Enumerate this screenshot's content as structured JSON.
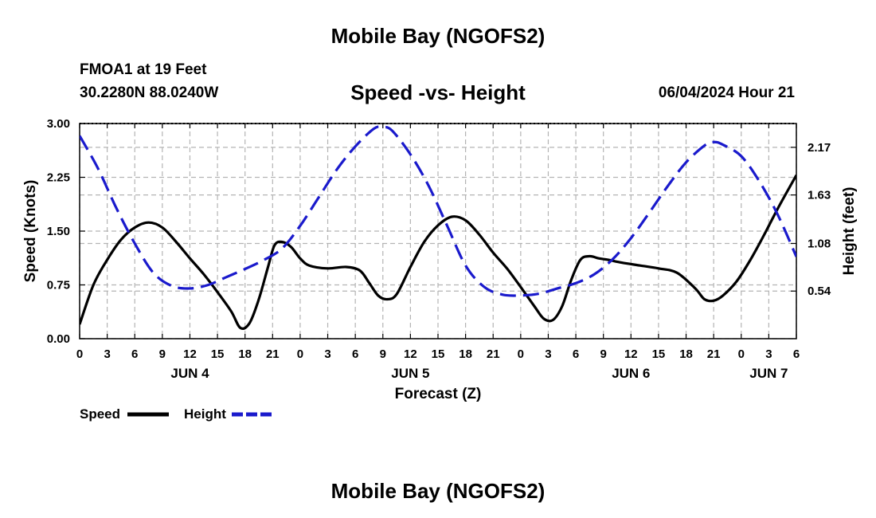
{
  "header": {
    "title": "Mobile Bay (NGOFS2)",
    "station": "FMOA1 at 19 Feet",
    "coords": "30.2280N  88.0240W",
    "subtitle": "Speed -vs- Height",
    "timestamp": "06/04/2024 Hour 21"
  },
  "footer": {
    "title": "Mobile Bay (NGOFS2)"
  },
  "colors": {
    "speed": "#000000",
    "height": "#1a1acc",
    "grid": "#b4b4b4"
  },
  "chart_data": {
    "type": "line",
    "xlabel": "Forecast (Z)",
    "ylabel": "Speed (Knots)",
    "y2label": "Height (feet)",
    "x_range_hours": [
      0,
      78
    ],
    "x_tick_labels": [
      "0",
      "3",
      "6",
      "9",
      "12",
      "15",
      "18",
      "21",
      "0",
      "3",
      "6",
      "9",
      "12",
      "15",
      "18",
      "21",
      "0",
      "3",
      "6",
      "9",
      "12",
      "15",
      "18",
      "21",
      "0",
      "3",
      "6"
    ],
    "day_labels": [
      {
        "label": "JUN 4",
        "hour": 12
      },
      {
        "label": "JUN 5",
        "hour": 36
      },
      {
        "label": "JUN 6",
        "hour": 60
      },
      {
        "label": "JUN 7",
        "hour": 75
      }
    ],
    "ylim": [
      0,
      3
    ],
    "y_ticks": [
      "0.00",
      "0.75",
      "1.50",
      "2.25",
      "3.00"
    ],
    "y2_ticks": [
      {
        "label": "0.54",
        "value": 0.54
      },
      {
        "label": "1.08",
        "value": 1.08
      },
      {
        "label": "1.63",
        "value": 1.63
      },
      {
        "label": "2.17",
        "value": 2.17
      }
    ],
    "y2lim": [
      0.0,
      2.44
    ],
    "series": [
      {
        "name": "Speed",
        "axis": "left",
        "style": "solid",
        "x": [
          0,
          1.5,
          3,
          4.5,
          6,
          7.5,
          9,
          10.5,
          12,
          13.5,
          15,
          16.5,
          17.5,
          18.5,
          19.5,
          20.5,
          21.2,
          22,
          23,
          24,
          25,
          27,
          29,
          30.5,
          31.5,
          32.5,
          33.5,
          34.5,
          36,
          37.5,
          39,
          40.5,
          42,
          43.5,
          45,
          46.5,
          48,
          49.5,
          50.5,
          51.5,
          52.5,
          53.5,
          54.5,
          55.5,
          56.5,
          57.5,
          59,
          61,
          63,
          65,
          67,
          68,
          69,
          70,
          71.5,
          73,
          74.5,
          76,
          78
        ],
        "values": [
          0.2,
          0.75,
          1.1,
          1.38,
          1.55,
          1.62,
          1.55,
          1.35,
          1.12,
          0.9,
          0.65,
          0.38,
          0.15,
          0.22,
          0.55,
          1.0,
          1.3,
          1.35,
          1.28,
          1.12,
          1.02,
          0.98,
          1.0,
          0.95,
          0.78,
          0.6,
          0.55,
          0.62,
          1.0,
          1.35,
          1.58,
          1.7,
          1.65,
          1.45,
          1.2,
          0.98,
          0.72,
          0.45,
          0.28,
          0.26,
          0.45,
          0.82,
          1.1,
          1.15,
          1.12,
          1.1,
          1.06,
          1.02,
          0.98,
          0.92,
          0.7,
          0.55,
          0.53,
          0.6,
          0.8,
          1.1,
          1.45,
          1.82,
          2.28
        ]
      },
      {
        "name": "Height",
        "axis": "right",
        "style": "dashed",
        "x": [
          0,
          2,
          4,
          6,
          8,
          10,
          12,
          14,
          16,
          18,
          20,
          22,
          24,
          26,
          28,
          30,
          32,
          33,
          34,
          36,
          38,
          40,
          42,
          44,
          46,
          48,
          50,
          52,
          54,
          56,
          58,
          60,
          62,
          64,
          66,
          68,
          69,
          70,
          72,
          74,
          76,
          78
        ],
        "values": [
          2.3,
          1.93,
          1.48,
          1.08,
          0.75,
          0.6,
          0.57,
          0.61,
          0.7,
          0.79,
          0.89,
          1.02,
          1.28,
          1.6,
          1.92,
          2.18,
          2.38,
          2.4,
          2.36,
          2.09,
          1.73,
          1.28,
          0.83,
          0.59,
          0.5,
          0.49,
          0.51,
          0.57,
          0.63,
          0.73,
          0.9,
          1.14,
          1.43,
          1.73,
          2.0,
          2.19,
          2.23,
          2.2,
          2.07,
          1.78,
          1.4,
          0.93
        ]
      }
    ]
  },
  "legend": {
    "speed_label": "Speed",
    "height_label": "Height"
  }
}
